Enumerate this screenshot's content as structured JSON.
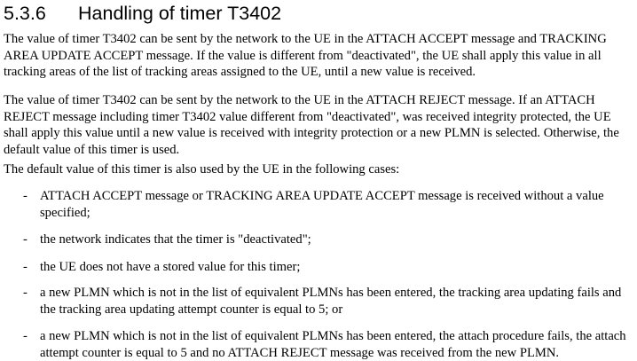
{
  "section": {
    "number": "5.3.6",
    "title": "Handling of timer T3402"
  },
  "paragraphs": [
    "The value of timer T3402 can be sent by the network to the UE in the ATTACH ACCEPT message and TRACKING AREA UPDATE ACCEPT message. If the value is different from \"deactivated\", the UE shall apply this value in all tracking areas of the list of tracking areas assigned to the UE, until a new value is received.",
    "The value of timer T3402 can be sent by the network to the UE in the ATTACH REJECT message. If an ATTACH REJECT message including timer T3402 value different from \"deactivated\", was received integrity protected, the UE shall apply this value until a new value is received with integrity protection or a new PLMN is selected. Otherwise, the default value of this timer is used.",
    "The default value of this timer is also used by the UE in the following cases:"
  ],
  "list": {
    "marker": "-",
    "items": [
      "ATTACH ACCEPT message or TRACKING AREA UPDATE ACCEPT message is received without a value specified;",
      "the network indicates that the timer is \"deactivated\";",
      "the UE does not have a stored value for this timer;",
      "a new PLMN which is not in the list of equivalent PLMNs has been entered, the tracking area updating fails and the tracking area updating attempt counter is equal to 5; or",
      "a new PLMN which is not in the list of equivalent PLMNs has been entered, the attach procedure fails, the attach attempt counter is equal to 5 and no ATTACH REJECT message was received from the new PLMN."
    ]
  }
}
